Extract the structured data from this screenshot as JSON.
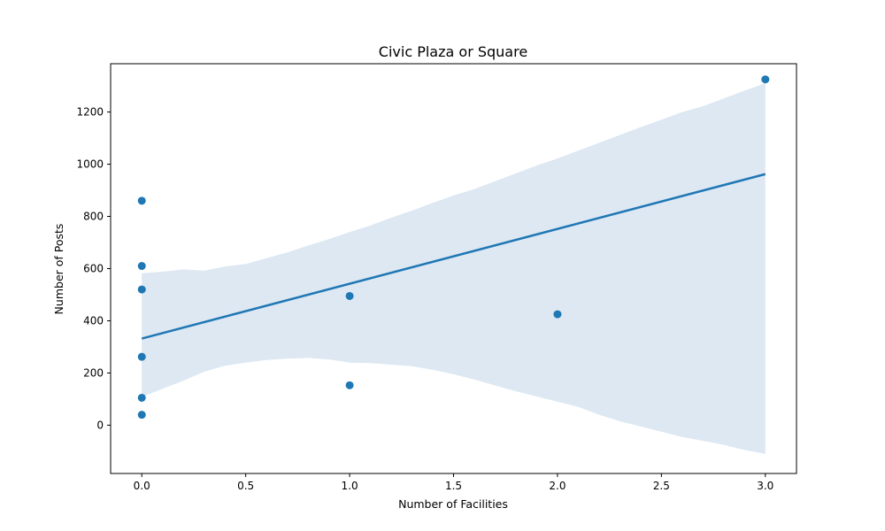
{
  "chart_data": {
    "type": "scatter",
    "title": "Civic Plaza or Square",
    "xlabel": "Number of Facilities",
    "ylabel": "Number of Posts",
    "xlim": [
      -0.15,
      3.15
    ],
    "ylim": [
      -185,
      1385
    ],
    "xticks": [
      0.0,
      0.5,
      1.0,
      1.5,
      2.0,
      2.5,
      3.0
    ],
    "xtick_labels": [
      "0.0",
      "0.5",
      "1.0",
      "1.5",
      "2.0",
      "2.5",
      "3.0"
    ],
    "yticks": [
      0,
      200,
      400,
      600,
      800,
      1000,
      1200
    ],
    "ytick_labels": [
      "0",
      "200",
      "400",
      "600",
      "800",
      "1000",
      "1200"
    ],
    "grid": false,
    "points": [
      {
        "x": 0,
        "y": 860
      },
      {
        "x": 0,
        "y": 610
      },
      {
        "x": 0,
        "y": 520
      },
      {
        "x": 0,
        "y": 262
      },
      {
        "x": 0,
        "y": 105
      },
      {
        "x": 0,
        "y": 40
      },
      {
        "x": 1,
        "y": 495
      },
      {
        "x": 1,
        "y": 153
      },
      {
        "x": 2,
        "y": 425
      },
      {
        "x": 3,
        "y": 1325
      }
    ],
    "regression_line": {
      "x": [
        0,
        3
      ],
      "y": [
        332,
        962
      ]
    },
    "confidence_band": {
      "x": [
        0,
        0.1,
        0.2,
        0.3,
        0.4,
        0.5,
        0.6,
        0.7,
        0.8,
        0.9,
        1.0,
        1.1,
        1.2,
        1.3,
        1.4,
        1.5,
        1.6,
        1.7,
        1.8,
        1.9,
        2.0,
        2.1,
        2.2,
        2.3,
        2.4,
        2.5,
        2.6,
        2.7,
        2.8,
        2.9,
        3.0
      ],
      "upper": [
        582,
        588,
        597,
        592,
        608,
        618,
        640,
        662,
        688,
        713,
        740,
        765,
        795,
        822,
        852,
        880,
        905,
        935,
        965,
        995,
        1022,
        1052,
        1082,
        1112,
        1142,
        1170,
        1200,
        1222,
        1252,
        1282,
        1310
      ],
      "lower": [
        108,
        140,
        170,
        205,
        228,
        240,
        250,
        255,
        258,
        252,
        240,
        238,
        232,
        226,
        212,
        195,
        175,
        152,
        130,
        110,
        90,
        70,
        40,
        15,
        -5,
        -25,
        -45,
        -60,
        -75,
        -95,
        -110
      ]
    },
    "colors": {
      "series": "#1f77b4",
      "band": "#dde8f3"
    }
  }
}
